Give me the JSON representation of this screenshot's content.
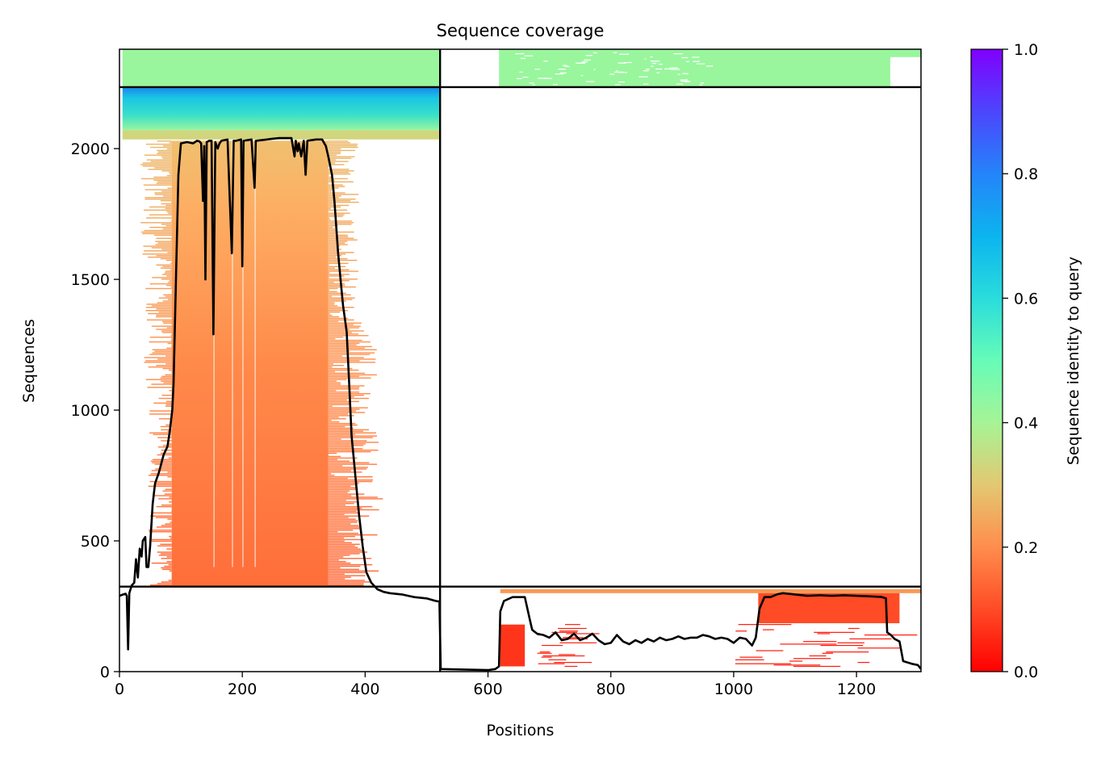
{
  "chart_data": {
    "type": "heatmap",
    "title": "Sequence coverage",
    "xlabel": "Positions",
    "ylabel": "Sequences",
    "xlim": [
      0,
      1305
    ],
    "ylim": [
      0,
      2380
    ],
    "x_ticks": [
      "0",
      "200",
      "400",
      "600",
      "800",
      "1000",
      "1200"
    ],
    "y_ticks": [
      "0",
      "500",
      "1000",
      "1500",
      "2000"
    ],
    "colorbar": {
      "label": "Sequence identity to query",
      "range": [
        0,
        1
      ],
      "ticks": [
        "0.0",
        "0.2",
        "0.4",
        "0.6",
        "0.8",
        "1.0"
      ],
      "colormap": "rainbow_r"
    },
    "block_boundaries": {
      "x": [
        522
      ],
      "y": [
        325,
        2235
      ]
    },
    "coverage_line": [
      [
        0,
        290
      ],
      [
        6,
        295
      ],
      [
        10,
        298
      ],
      [
        12,
        290
      ],
      [
        14,
        85
      ],
      [
        16,
        300
      ],
      [
        20,
        330
      ],
      [
        24,
        340
      ],
      [
        27,
        430
      ],
      [
        30,
        360
      ],
      [
        33,
        470
      ],
      [
        36,
        440
      ],
      [
        38,
        500
      ],
      [
        42,
        515
      ],
      [
        44,
        400
      ],
      [
        47,
        400
      ],
      [
        50,
        480
      ],
      [
        54,
        640
      ],
      [
        58,
        720
      ],
      [
        64,
        760
      ],
      [
        72,
        830
      ],
      [
        78,
        860
      ],
      [
        82,
        920
      ],
      [
        86,
        1000
      ],
      [
        88,
        1100
      ],
      [
        90,
        1300
      ],
      [
        92,
        1500
      ],
      [
        94,
        1700
      ],
      [
        96,
        1900
      ],
      [
        100,
        2020
      ],
      [
        110,
        2025
      ],
      [
        120,
        2020
      ],
      [
        126,
        2030
      ],
      [
        130,
        2028
      ],
      [
        133,
        2020
      ],
      [
        136,
        1800
      ],
      [
        138,
        2010
      ],
      [
        140,
        1500
      ],
      [
        142,
        2025
      ],
      [
        146,
        2030
      ],
      [
        150,
        2030
      ],
      [
        153,
        1290
      ],
      [
        156,
        2025
      ],
      [
        160,
        2000
      ],
      [
        163,
        2020
      ],
      [
        166,
        2030
      ],
      [
        176,
        2035
      ],
      [
        183,
        1600
      ],
      [
        186,
        2030
      ],
      [
        190,
        2030
      ],
      [
        198,
        2035
      ],
      [
        200,
        1550
      ],
      [
        202,
        2030
      ],
      [
        215,
        2035
      ],
      [
        220,
        1850
      ],
      [
        222,
        2030
      ],
      [
        240,
        2035
      ],
      [
        250,
        2038
      ],
      [
        260,
        2040
      ],
      [
        280,
        2040
      ],
      [
        285,
        1970
      ],
      [
        287,
        2030
      ],
      [
        290,
        1990
      ],
      [
        292,
        2020
      ],
      [
        296,
        1970
      ],
      [
        300,
        2030
      ],
      [
        303,
        1900
      ],
      [
        306,
        2030
      ],
      [
        320,
        2035
      ],
      [
        330,
        2035
      ],
      [
        336,
        2010
      ],
      [
        340,
        1970
      ],
      [
        346,
        1900
      ],
      [
        350,
        1800
      ],
      [
        356,
        1600
      ],
      [
        360,
        1500
      ],
      [
        364,
        1400
      ],
      [
        370,
        1300
      ],
      [
        374,
        1100
      ],
      [
        378,
        900
      ],
      [
        382,
        800
      ],
      [
        386,
        700
      ],
      [
        390,
        600
      ],
      [
        396,
        480
      ],
      [
        402,
        380
      ],
      [
        410,
        340
      ],
      [
        420,
        315
      ],
      [
        430,
        305
      ],
      [
        440,
        300
      ],
      [
        460,
        295
      ],
      [
        480,
        285
      ],
      [
        500,
        280
      ],
      [
        515,
        270
      ],
      [
        521,
        268
      ],
      [
        523,
        10
      ],
      [
        560,
        8
      ],
      [
        600,
        6
      ],
      [
        612,
        10
      ],
      [
        618,
        20
      ],
      [
        620,
        230
      ],
      [
        626,
        270
      ],
      [
        640,
        285
      ],
      [
        660,
        285
      ],
      [
        668,
        200
      ],
      [
        672,
        160
      ],
      [
        680,
        145
      ],
      [
        690,
        140
      ],
      [
        700,
        130
      ],
      [
        710,
        150
      ],
      [
        720,
        120
      ],
      [
        730,
        125
      ],
      [
        740,
        145
      ],
      [
        750,
        120
      ],
      [
        760,
        130
      ],
      [
        770,
        145
      ],
      [
        780,
        120
      ],
      [
        790,
        105
      ],
      [
        800,
        110
      ],
      [
        810,
        140
      ],
      [
        820,
        115
      ],
      [
        830,
        105
      ],
      [
        840,
        120
      ],
      [
        850,
        110
      ],
      [
        860,
        125
      ],
      [
        870,
        115
      ],
      [
        880,
        130
      ],
      [
        890,
        120
      ],
      [
        900,
        125
      ],
      [
        910,
        135
      ],
      [
        920,
        125
      ],
      [
        930,
        130
      ],
      [
        940,
        130
      ],
      [
        950,
        140
      ],
      [
        960,
        135
      ],
      [
        970,
        125
      ],
      [
        980,
        130
      ],
      [
        990,
        125
      ],
      [
        1000,
        110
      ],
      [
        1010,
        130
      ],
      [
        1020,
        125
      ],
      [
        1030,
        100
      ],
      [
        1036,
        130
      ],
      [
        1042,
        240
      ],
      [
        1050,
        285
      ],
      [
        1060,
        285
      ],
      [
        1070,
        295
      ],
      [
        1080,
        300
      ],
      [
        1100,
        295
      ],
      [
        1120,
        290
      ],
      [
        1140,
        292
      ],
      [
        1160,
        290
      ],
      [
        1180,
        292
      ],
      [
        1200,
        290
      ],
      [
        1220,
        288
      ],
      [
        1240,
        286
      ],
      [
        1248,
        280
      ],
      [
        1250,
        150
      ],
      [
        1256,
        140
      ],
      [
        1262,
        125
      ],
      [
        1270,
        115
      ],
      [
        1276,
        40
      ],
      [
        1290,
        30
      ],
      [
        1300,
        25
      ],
      [
        1305,
        10
      ]
    ],
    "identity_blocks": [
      {
        "x": [
          5,
          522
        ],
        "y": [
          2235,
          2380
        ],
        "identity": 0.42
      },
      {
        "x": [
          618,
          1255
        ],
        "y": [
          2235,
          2380
        ],
        "identity": 0.42
      },
      {
        "x": [
          1255,
          1305
        ],
        "y": [
          2350,
          2380
        ],
        "identity": 0.42
      },
      {
        "x": [
          5,
          522
        ],
        "y": [
          2070,
          2235
        ],
        "identity": 0.62
      },
      {
        "x": [
          5,
          522
        ],
        "y": [
          2035,
          2070
        ],
        "identity": 0.33
      },
      {
        "x": [
          85,
          340
        ],
        "y": [
          325,
          2030
        ],
        "identity": 0.2
      },
      {
        "x": [
          620,
          1305
        ],
        "y": [
          300,
          315
        ],
        "identity": 0.22
      },
      {
        "x": [
          1040,
          1270
        ],
        "y": [
          185,
          300
        ],
        "identity": 0.1
      },
      {
        "x": [
          620,
          660
        ],
        "y": [
          20,
          180
        ],
        "identity": 0.07
      }
    ]
  }
}
